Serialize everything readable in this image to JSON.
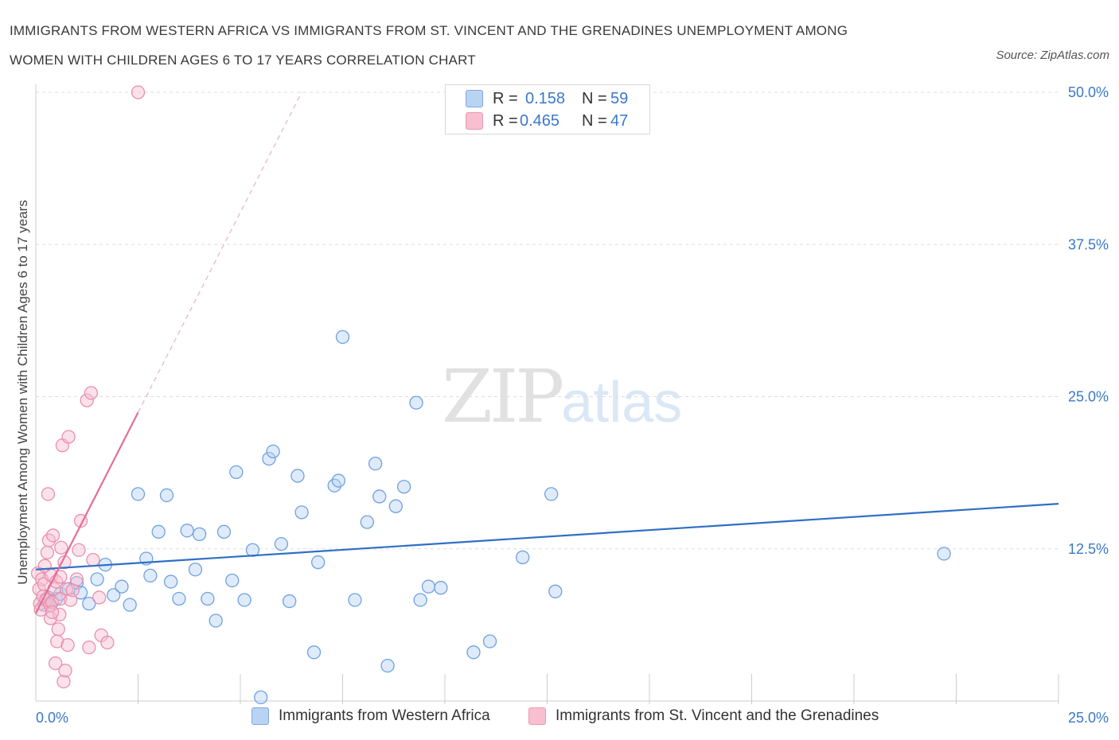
{
  "title_line1": "IMMIGRANTS FROM WESTERN AFRICA VS IMMIGRANTS FROM ST. VINCENT AND THE GRENADINES UNEMPLOYMENT AMONG",
  "title_line2": "WOMEN WITH CHILDREN AGES 6 TO 17 YEARS CORRELATION CHART",
  "source": "Source: ZipAtlas.com",
  "watermark": {
    "zip": "ZIP",
    "atlas": "atlas"
  },
  "legend": {
    "r_label": "R =",
    "n_label": "N =",
    "series1": {
      "r": "0.158",
      "n": "59",
      "name": "Immigrants from Western Africa"
    },
    "series2": {
      "r": "0.465",
      "n": "47",
      "name": "Immigrants from St. Vincent and the Grenadines"
    }
  },
  "colors": {
    "blue": "#3a78c9",
    "blue_fill": "#b9d3f3",
    "pink": "#e8739a",
    "pink_fill": "#f7bfd0",
    "axis_text": "#3b78c9"
  },
  "chart_data": {
    "type": "scatter",
    "ylabel": "Unemployment Among Women with Children Ages 6 to 17 years",
    "xlabel": "",
    "xlim": [
      0,
      25
    ],
    "ylim": [
      0,
      50
    ],
    "x_tick_labels": [
      {
        "value": 0,
        "label": "0.0%"
      },
      {
        "value": 25,
        "label": "25.0%"
      }
    ],
    "y_tick_labels": [
      {
        "value": 12.5,
        "label": "12.5%"
      },
      {
        "value": 25,
        "label": "25.0%"
      },
      {
        "value": 37.5,
        "label": "37.5%"
      },
      {
        "value": 50,
        "label": "50.0%"
      }
    ],
    "grid": true,
    "series": [
      {
        "name": "Immigrants from Western Africa",
        "color": "#3a78c9",
        "trend": {
          "x": [
            0,
            25
          ],
          "y": [
            10.8,
            16.2
          ],
          "dashed_extension": false
        },
        "points": [
          [
            0.2,
            7.9
          ],
          [
            0.3,
            8.5
          ],
          [
            0.4,
            8.2
          ],
          [
            0.5,
            8.4
          ],
          [
            0.6,
            8.8
          ],
          [
            0.8,
            9.2
          ],
          [
            1.0,
            9.7
          ],
          [
            1.1,
            8.9
          ],
          [
            1.3,
            8.0
          ],
          [
            1.5,
            10.0
          ],
          [
            1.7,
            11.2
          ],
          [
            1.9,
            8.7
          ],
          [
            2.1,
            9.4
          ],
          [
            2.3,
            7.9
          ],
          [
            2.5,
            17.0
          ],
          [
            2.7,
            11.7
          ],
          [
            2.8,
            10.3
          ],
          [
            3.0,
            13.9
          ],
          [
            3.2,
            16.9
          ],
          [
            3.3,
            9.8
          ],
          [
            3.5,
            8.4
          ],
          [
            3.7,
            14.0
          ],
          [
            3.9,
            10.8
          ],
          [
            4.0,
            13.7
          ],
          [
            4.2,
            8.4
          ],
          [
            4.4,
            6.6
          ],
          [
            4.6,
            13.9
          ],
          [
            4.8,
            9.9
          ],
          [
            4.9,
            18.8
          ],
          [
            5.1,
            8.3
          ],
          [
            5.3,
            12.4
          ],
          [
            5.7,
            19.9
          ],
          [
            5.8,
            20.5
          ],
          [
            6.0,
            12.9
          ],
          [
            6.2,
            8.2
          ],
          [
            6.4,
            18.5
          ],
          [
            6.5,
            15.5
          ],
          [
            6.8,
            4.0
          ],
          [
            6.9,
            11.4
          ],
          [
            7.3,
            17.7
          ],
          [
            7.4,
            18.1
          ],
          [
            7.5,
            29.9
          ],
          [
            7.8,
            8.3
          ],
          [
            8.1,
            14.7
          ],
          [
            8.3,
            19.5
          ],
          [
            8.4,
            16.8
          ],
          [
            8.6,
            2.9
          ],
          [
            8.8,
            16.0
          ],
          [
            9.0,
            17.6
          ],
          [
            9.3,
            24.5
          ],
          [
            9.4,
            8.3
          ],
          [
            9.6,
            9.4
          ],
          [
            9.9,
            9.3
          ],
          [
            10.7,
            4.0
          ],
          [
            11.1,
            4.9
          ],
          [
            11.9,
            11.8
          ],
          [
            12.6,
            17.0
          ],
          [
            12.7,
            9.0
          ],
          [
            22.2,
            12.1
          ],
          [
            5.5,
            0.3
          ]
        ]
      },
      {
        "name": "Immigrants from St. Vincent and the Grenadines",
        "color": "#e8739a",
        "trend": {
          "x": [
            0,
            2.5
          ],
          "y": [
            7.2,
            23.7
          ],
          "dashed_extension_to": [
            6.5,
            50
          ]
        },
        "points": [
          [
            0.05,
            10.5
          ],
          [
            0.08,
            9.2
          ],
          [
            0.1,
            8.0
          ],
          [
            0.12,
            7.5
          ],
          [
            0.15,
            10.0
          ],
          [
            0.18,
            8.6
          ],
          [
            0.2,
            9.6
          ],
          [
            0.22,
            11.1
          ],
          [
            0.25,
            8.3
          ],
          [
            0.28,
            12.2
          ],
          [
            0.3,
            17.0
          ],
          [
            0.32,
            13.2
          ],
          [
            0.35,
            7.9
          ],
          [
            0.36,
            6.8
          ],
          [
            0.38,
            10.3
          ],
          [
            0.4,
            8.1
          ],
          [
            0.42,
            13.6
          ],
          [
            0.45,
            9.2
          ],
          [
            0.48,
            3.1
          ],
          [
            0.5,
            9.8
          ],
          [
            0.52,
            4.9
          ],
          [
            0.55,
            5.9
          ],
          [
            0.58,
            7.1
          ],
          [
            0.6,
            8.4
          ],
          [
            0.62,
            12.6
          ],
          [
            0.65,
            21.0
          ],
          [
            0.68,
            1.6
          ],
          [
            0.7,
            11.4
          ],
          [
            0.72,
            2.5
          ],
          [
            0.75,
            9.2
          ],
          [
            0.78,
            4.6
          ],
          [
            0.8,
            21.7
          ],
          [
            0.85,
            8.3
          ],
          [
            0.9,
            9.1
          ],
          [
            1.0,
            10.0
          ],
          [
            1.05,
            12.4
          ],
          [
            1.1,
            14.8
          ],
          [
            1.25,
            24.7
          ],
          [
            1.3,
            4.4
          ],
          [
            1.35,
            25.3
          ],
          [
            1.4,
            11.6
          ],
          [
            1.55,
            8.5
          ],
          [
            1.6,
            5.4
          ],
          [
            1.75,
            4.8
          ],
          [
            0.6,
            10.2
          ],
          [
            2.5,
            50.0
          ],
          [
            0.4,
            7.3
          ]
        ]
      }
    ]
  }
}
